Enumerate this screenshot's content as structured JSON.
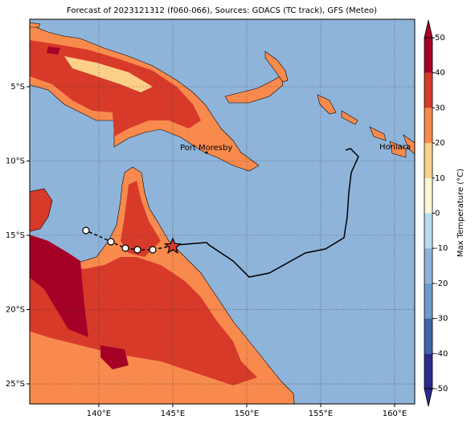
{
  "chart_data": {
    "type": "map",
    "title": "Forecast of 2023121312 (f060-066), Sources: GDACS (TC track), GFS (Meteo)",
    "xlim": [
      135.33,
      161.36
    ],
    "ylim": [
      -26.35,
      -0.46
    ],
    "xticks": [
      {
        "value": 140,
        "label": "140°E"
      },
      {
        "value": 145,
        "label": "145°E"
      },
      {
        "value": 150,
        "label": "150°E"
      },
      {
        "value": 155,
        "label": "155°E"
      },
      {
        "value": 160,
        "label": "160°E"
      }
    ],
    "yticks": [
      {
        "value": -5,
        "label": "5°S"
      },
      {
        "value": -10,
        "label": "10°S"
      },
      {
        "value": -15,
        "label": "15°S"
      },
      {
        "value": -20,
        "label": "20°S"
      },
      {
        "value": -25,
        "label": "25°S"
      }
    ],
    "grid": true,
    "annotations": [
      "Port Moresby",
      "Honiara"
    ],
    "colorbar": {
      "label": "Max Temperature (°C)",
      "ticks": [
        -50,
        -40,
        -30,
        -20,
        -10,
        0,
        10,
        20,
        30,
        40,
        50
      ],
      "colors": [
        "#2b2b8c",
        "#3f63a8",
        "#6a9ccc",
        "#8fb4da",
        "#b9dcec",
        "#fdf6d2",
        "#fdd08a",
        "#f88a4d",
        "#d83a2a",
        "#a50026"
      ]
    }
  }
}
